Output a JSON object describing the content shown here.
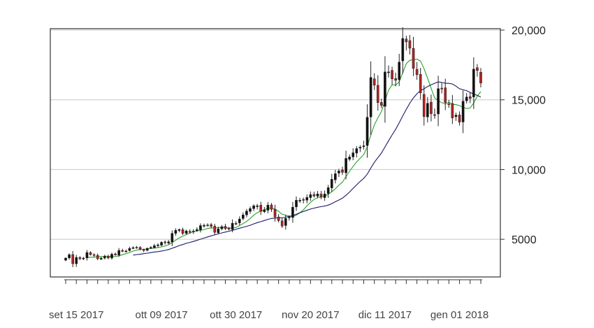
{
  "chart_data": {
    "type": "candlestick",
    "x_tick_labels": [
      "set 15 2017",
      "ott 09 2017",
      "ott 30 2017",
      "nov 20 2017",
      "dic 11 2017",
      "gen 01 2018"
    ],
    "y_tick_labels": [
      "20,000",
      "15,000",
      "10,000",
      "5000"
    ],
    "y_ticks": [
      20000,
      15000,
      10000,
      5000
    ],
    "ylim": [
      2300,
      20100
    ],
    "grid": "horizontal",
    "colors": {
      "up": "#111111",
      "down": "#b22222",
      "ma_fast": "#2ca02c",
      "ma_slow": "#1a1a66",
      "grid": "#c8c8c8",
      "frame": "#333333"
    },
    "series": [
      {
        "kind": "ohlc_close",
        "x": [
          "2017-09-12",
          "2017-09-13",
          "2017-09-14",
          "2017-09-15",
          "2017-09-16",
          "2017-09-17",
          "2017-09-18",
          "2017-09-19",
          "2017-09-20",
          "2017-09-21",
          "2017-09-22",
          "2017-09-23",
          "2017-09-24",
          "2017-09-25",
          "2017-09-26",
          "2017-09-27",
          "2017-09-28",
          "2017-09-29",
          "2017-09-30",
          "2017-10-01",
          "2017-10-02",
          "2017-10-03",
          "2017-10-04",
          "2017-10-05",
          "2017-10-06",
          "2017-10-07",
          "2017-10-08",
          "2017-10-09",
          "2017-10-10",
          "2017-10-11",
          "2017-10-12",
          "2017-10-13",
          "2017-10-14",
          "2017-10-15",
          "2017-10-16",
          "2017-10-17",
          "2017-10-18",
          "2017-10-19",
          "2017-10-20",
          "2017-10-21",
          "2017-10-22",
          "2017-10-23",
          "2017-10-24",
          "2017-10-25",
          "2017-10-26",
          "2017-10-27",
          "2017-10-28",
          "2017-10-29",
          "2017-10-30",
          "2017-10-31",
          "2017-11-01",
          "2017-11-02",
          "2017-11-03",
          "2017-11-04",
          "2017-11-05",
          "2017-11-06",
          "2017-11-07",
          "2017-11-08",
          "2017-11-09",
          "2017-11-10",
          "2017-11-11",
          "2017-11-12",
          "2017-11-13",
          "2017-11-14",
          "2017-11-15",
          "2017-11-16",
          "2017-11-17",
          "2017-11-18",
          "2017-11-19",
          "2017-11-20",
          "2017-11-21",
          "2017-11-22",
          "2017-11-23",
          "2017-11-24",
          "2017-11-25",
          "2017-11-26",
          "2017-11-27",
          "2017-11-28",
          "2017-11-29",
          "2017-11-30",
          "2017-12-01",
          "2017-12-02",
          "2017-12-03",
          "2017-12-04",
          "2017-12-05",
          "2017-12-06",
          "2017-12-07",
          "2017-12-08",
          "2017-12-09",
          "2017-12-10",
          "2017-12-11",
          "2017-12-12",
          "2017-12-13",
          "2017-12-14",
          "2017-12-15",
          "2017-12-16",
          "2017-12-17",
          "2017-12-18",
          "2017-12-19",
          "2017-12-20",
          "2017-12-21",
          "2017-12-22",
          "2017-12-23",
          "2017-12-24",
          "2017-12-25",
          "2017-12-26",
          "2017-12-27",
          "2017-12-28",
          "2017-12-29",
          "2017-12-30",
          "2017-12-31",
          "2018-01-01",
          "2018-01-02",
          "2018-01-03",
          "2018-01-04",
          "2018-01-05",
          "2018-01-06",
          "2018-01-07"
        ],
        "values": [
          3650,
          3900,
          3250,
          3700,
          3600,
          3650,
          4050,
          3900,
          3850,
          3600,
          3650,
          3780,
          3660,
          3930,
          3880,
          4200,
          4170,
          4160,
          4340,
          4400,
          4390,
          4300,
          4200,
          4350,
          4420,
          4540,
          4600,
          4780,
          4750,
          4820,
          5420,
          5640,
          5700,
          5420,
          5600,
          5540,
          5580,
          5700,
          5980,
          6000,
          6020,
          5930,
          5500,
          5750,
          5900,
          5770,
          5740,
          6150,
          6130,
          6450,
          6750,
          7020,
          7200,
          7400,
          7400,
          7000,
          7100,
          7450,
          7150,
          6600,
          6340,
          5950,
          6500,
          6600,
          7300,
          7800,
          7800,
          7800,
          8000,
          8200,
          8100,
          8250,
          8050,
          8250,
          8700,
          9300,
          9700,
          9900,
          9800,
          10800,
          10900,
          11200,
          11500,
          11600,
          11700,
          13750,
          16600,
          16050,
          14800,
          14600,
          17000,
          17000,
          16500,
          16400,
          17700,
          19400,
          19150,
          18700,
          17250,
          16800,
          15500,
          13800,
          14750,
          14000,
          13900,
          15800,
          15800,
          14800,
          14700,
          13700,
          13900,
          13400,
          14900,
          15200,
          15100,
          17200,
          17100,
          16200
        ]
      },
      {
        "name": "",
        "kind": "moving_average_fast",
        "window": 7
      },
      {
        "name": "",
        "kind": "moving_average_slow",
        "window": 20
      }
    ]
  }
}
